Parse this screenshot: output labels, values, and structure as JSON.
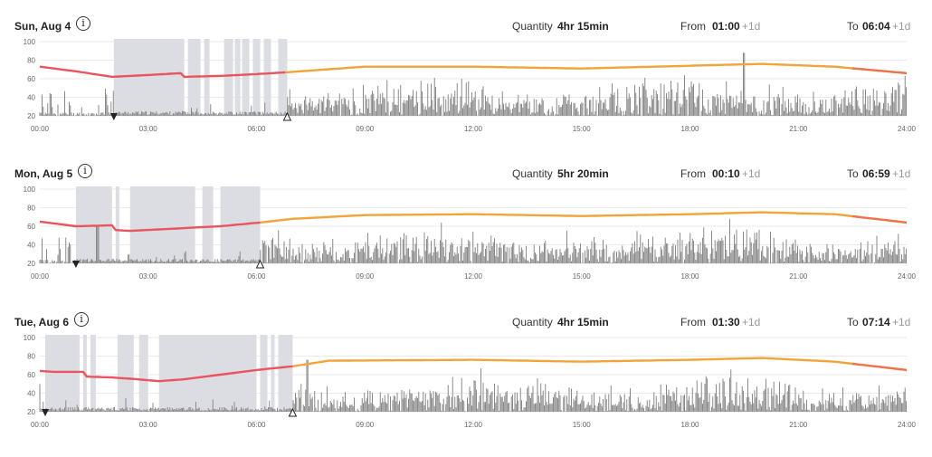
{
  "labels": {
    "quantity": "Quantity",
    "from": "From",
    "to": "To",
    "info_glyph": "i"
  },
  "colors": {
    "rest_band": "#dcdde2",
    "activity": "#8a8a8a",
    "curve_warm": "#f1a43a",
    "curve_sleep": "#e9545f",
    "grid": "#e3e3e3"
  },
  "chart_data": {
    "type": "area",
    "xlabel": "",
    "ylabel": "",
    "ylim": [
      20,
      100
    ],
    "yticks": [
      "100",
      "80",
      "60",
      "40",
      "20"
    ],
    "xticks": [
      "00:00",
      "03:00",
      "06:00",
      "09:00",
      "12:00",
      "15:00",
      "18:00",
      "21:00",
      "24:00"
    ],
    "days": [
      {
        "date": "Sun, Aug 4",
        "quantity": "4hr 15min",
        "from": "01:00",
        "from_suffix": "+1d",
        "to": "06:04",
        "to_suffix": "+1d",
        "sleep_start_hour": 2.05,
        "sleep_end_hour": 6.85,
        "rest_periods": [
          [
            2.05,
            4.0
          ],
          [
            4.1,
            4.45
          ],
          [
            4.55,
            4.7
          ],
          [
            5.1,
            5.35
          ],
          [
            5.4,
            5.55
          ],
          [
            5.6,
            5.8
          ],
          [
            5.9,
            6.1
          ],
          [
            6.2,
            6.4
          ],
          [
            6.6,
            6.85
          ]
        ],
        "curve": [
          [
            0,
            73
          ],
          [
            1,
            68
          ],
          [
            2,
            62
          ],
          [
            3,
            64
          ],
          [
            3.9,
            66
          ],
          [
            4.0,
            62
          ],
          [
            5,
            63
          ],
          [
            6,
            65
          ],
          [
            6.85,
            67
          ],
          [
            9,
            73
          ],
          [
            12,
            73
          ],
          [
            15,
            71
          ],
          [
            18,
            74
          ],
          [
            20,
            76
          ],
          [
            22,
            73
          ],
          [
            24,
            66
          ]
        ],
        "sleep_curve_end_hour": 6.85,
        "activity_peak_hour": 19.5,
        "activity_peak_value": 88,
        "seed": 11
      },
      {
        "date": "Mon, Aug 5",
        "quantity": "5hr 20min",
        "from": "00:10",
        "from_suffix": "+1d",
        "to": "06:59",
        "to_suffix": "+1d",
        "sleep_start_hour": 1.0,
        "sleep_end_hour": 6.1,
        "rest_periods": [
          [
            1.0,
            2.0
          ],
          [
            2.1,
            2.2
          ],
          [
            2.5,
            4.3
          ],
          [
            4.5,
            4.8
          ],
          [
            5.0,
            6.1
          ]
        ],
        "curve": [
          [
            0,
            65
          ],
          [
            1,
            60
          ],
          [
            2,
            61
          ],
          [
            2.05,
            56
          ],
          [
            2.5,
            55
          ],
          [
            4,
            58
          ],
          [
            5,
            60
          ],
          [
            6.1,
            64
          ],
          [
            7,
            68
          ],
          [
            9,
            72
          ],
          [
            12,
            73
          ],
          [
            15,
            71
          ],
          [
            18,
            73
          ],
          [
            20,
            75
          ],
          [
            22,
            73
          ],
          [
            24,
            64
          ]
        ],
        "sleep_curve_end_hour": 6.1,
        "activity_peak_hour": 1.6,
        "activity_peak_value": 60,
        "seed": 29
      },
      {
        "date": "Tue, Aug 6",
        "quantity": "4hr 15min",
        "from": "01:30",
        "from_suffix": "+1d",
        "to": "07:14",
        "to_suffix": "+1d",
        "sleep_start_hour": 0.15,
        "sleep_end_hour": 7.0,
        "rest_periods": [
          [
            0.15,
            1.1
          ],
          [
            1.2,
            1.3
          ],
          [
            1.4,
            1.55
          ],
          [
            2.15,
            2.6
          ],
          [
            2.75,
            3.0
          ],
          [
            3.3,
            6.0
          ],
          [
            6.1,
            6.3
          ],
          [
            6.4,
            6.5
          ],
          [
            6.6,
            7.0
          ]
        ],
        "curve": [
          [
            0,
            64
          ],
          [
            0.4,
            63
          ],
          [
            1.2,
            63
          ],
          [
            1.25,
            58
          ],
          [
            2,
            57
          ],
          [
            2.7,
            55
          ],
          [
            3.3,
            53
          ],
          [
            4,
            55
          ],
          [
            5,
            60
          ],
          [
            6,
            65
          ],
          [
            7,
            69
          ],
          [
            8,
            75
          ],
          [
            12,
            76
          ],
          [
            15,
            74
          ],
          [
            18,
            76
          ],
          [
            20,
            78
          ],
          [
            22,
            74
          ],
          [
            24,
            65
          ]
        ],
        "sleep_curve_end_hour": 7.0,
        "activity_peak_hour": 7.4,
        "activity_peak_value": 76,
        "seed": 47
      }
    ]
  }
}
